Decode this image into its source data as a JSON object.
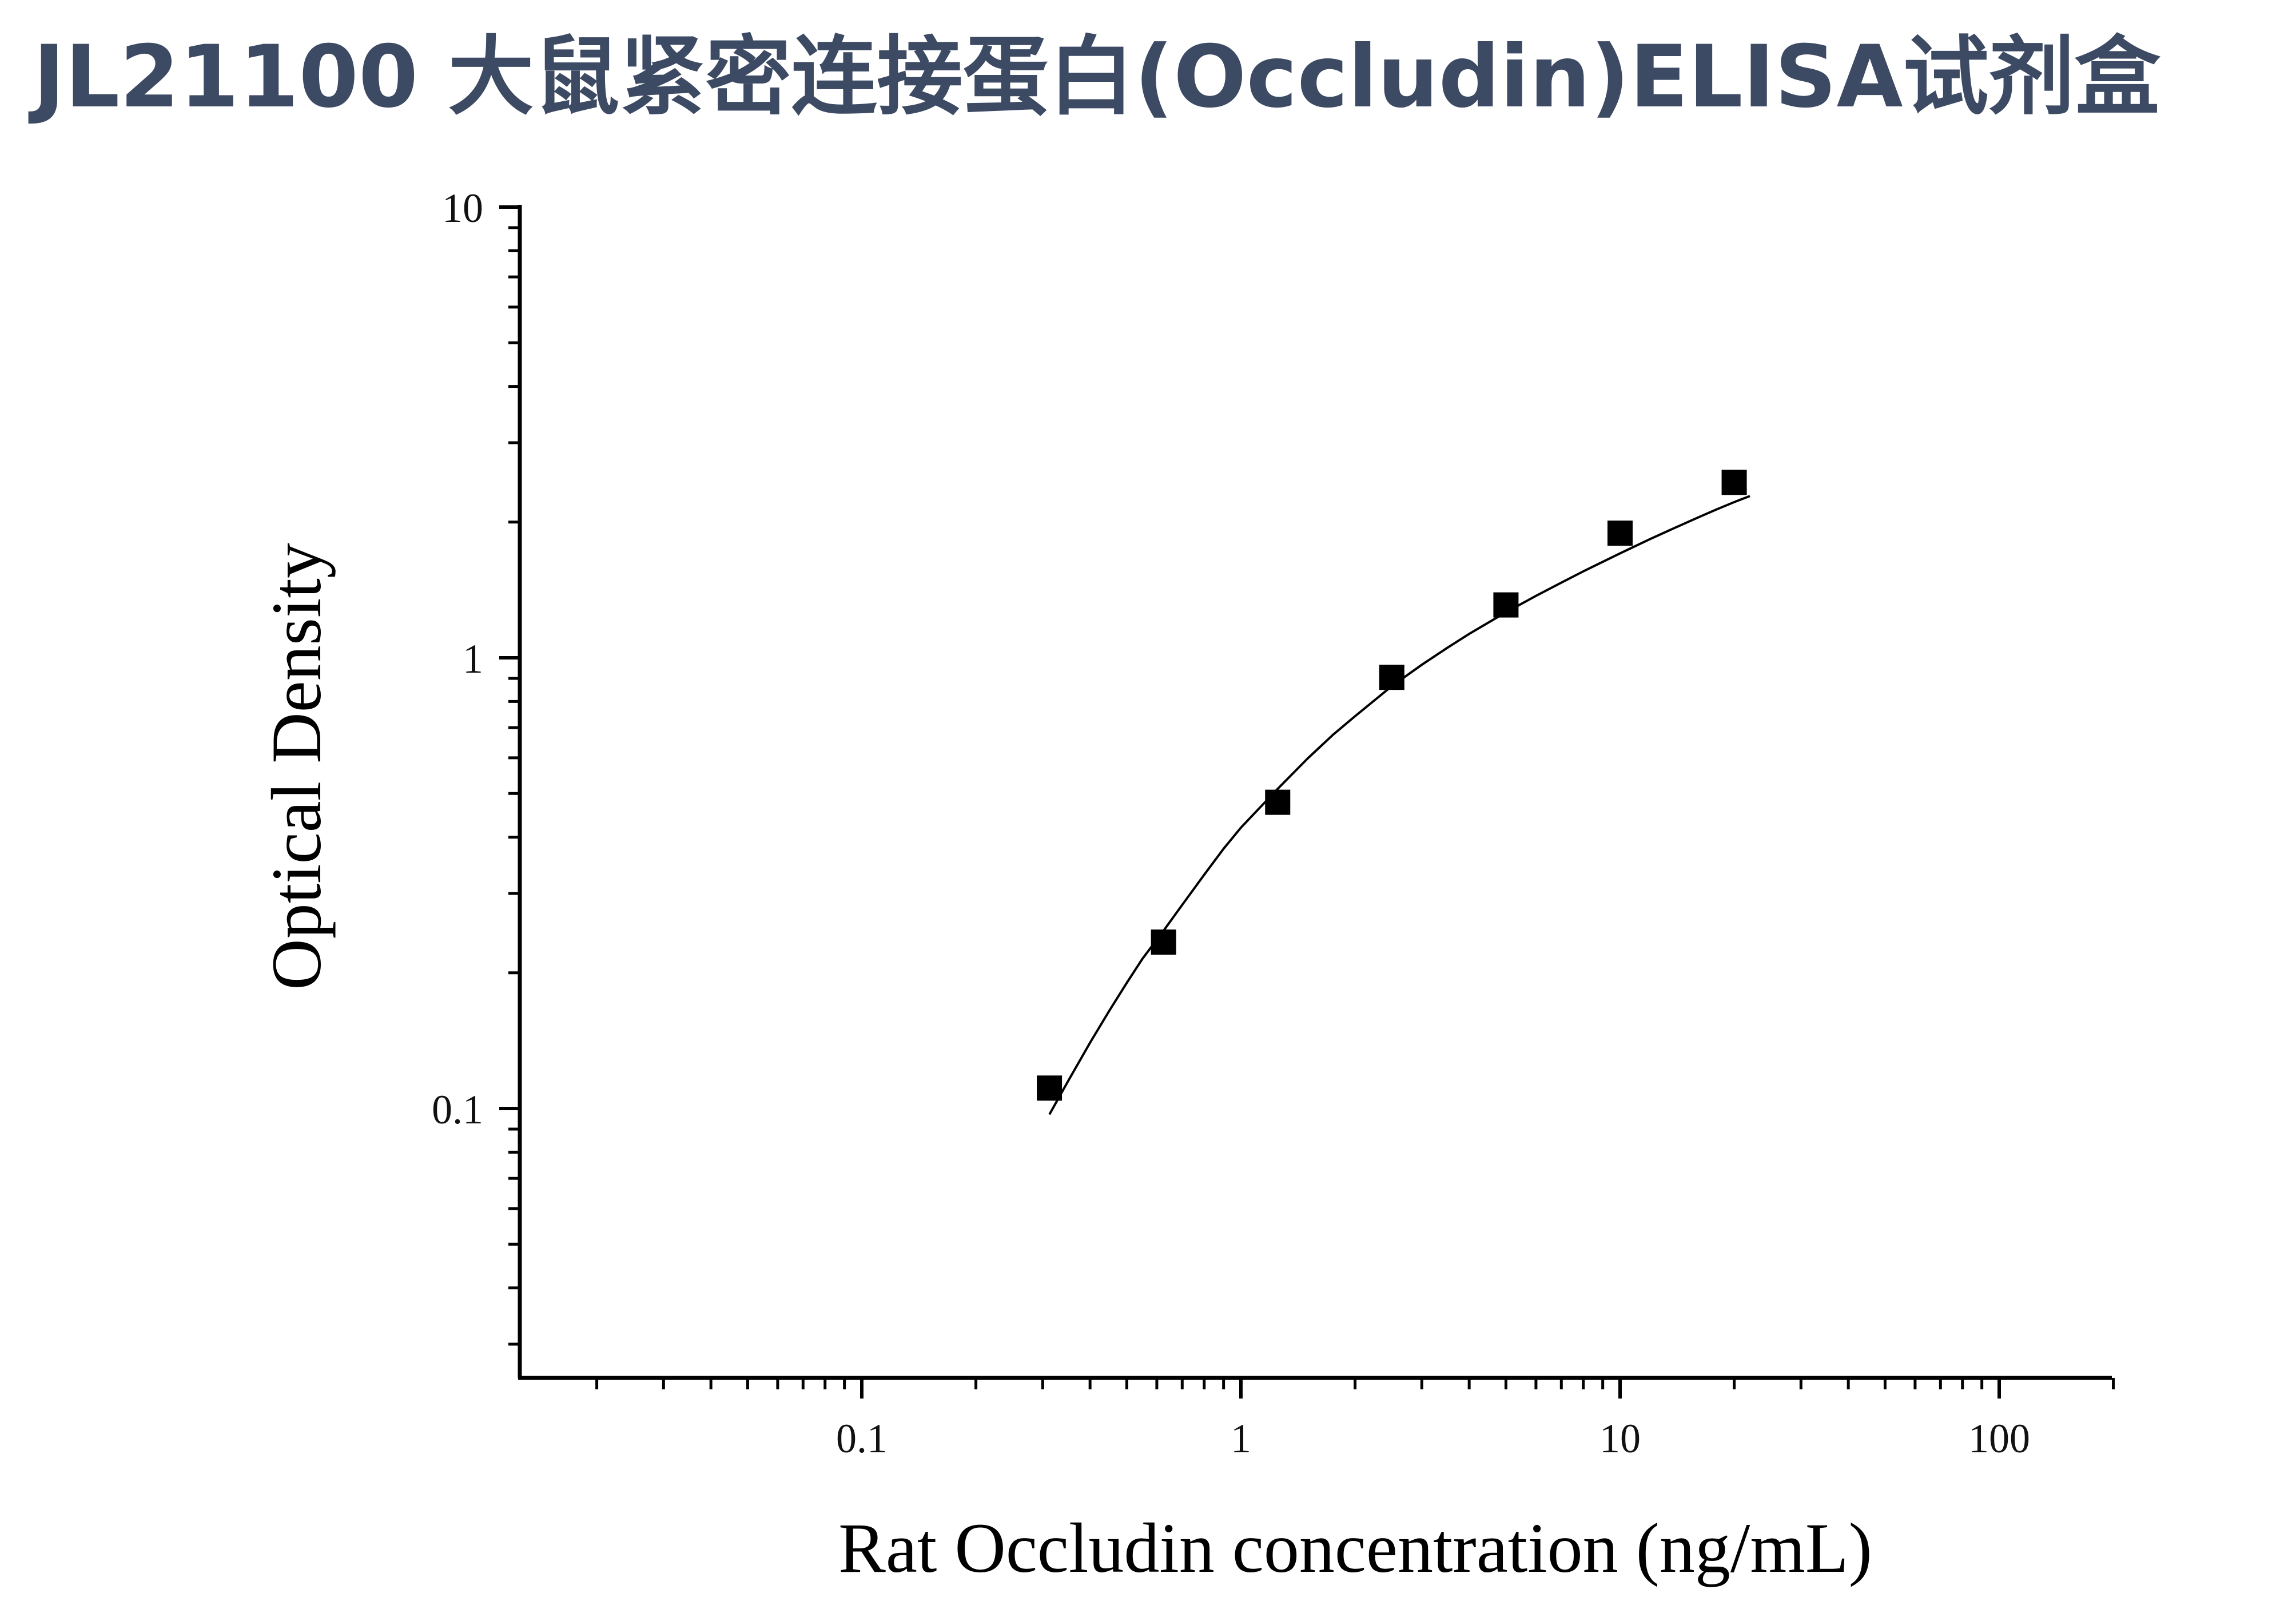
{
  "page": {
    "title": "JL21100 大鼠紧密连接蛋白(Occludin)ELISA试剂盒"
  },
  "chart_data": {
    "type": "scatter",
    "title": "",
    "xlabel": "Rat Occludin concentration (ng/mL)",
    "ylabel": "Optical Density",
    "x_scale": "log",
    "y_scale": "log",
    "xlim": [
      0.012,
      200
    ],
    "ylim": [
      0.025,
      10
    ],
    "x_ticks": [
      {
        "value": 0.1,
        "label": "0.1"
      },
      {
        "value": 1,
        "label": "1"
      },
      {
        "value": 10,
        "label": "10"
      },
      {
        "value": 100,
        "label": "100"
      }
    ],
    "y_ticks": [
      {
        "value": 0.1,
        "label": "0.1"
      },
      {
        "value": 1,
        "label": "1"
      },
      {
        "value": 10,
        "label": "10"
      }
    ],
    "grid": false,
    "legend": "none",
    "marker": "square",
    "marker_color": "#000000",
    "line_color": "#000000",
    "series": [
      {
        "x": [
          0.3125,
          0.625,
          1.25,
          2.5,
          5,
          10,
          20
        ],
        "y": [
          0.111,
          0.234,
          0.478,
          0.905,
          1.31,
          1.89,
          2.45
        ]
      }
    ],
    "fit_curve": {
      "type": "four-parameter logistic",
      "x_range": [
        0.3125,
        20
      ],
      "points": [
        [
          0.3125,
          0.097
        ],
        [
          0.35,
          0.115
        ],
        [
          0.4,
          0.14
        ],
        [
          0.45,
          0.165
        ],
        [
          0.5,
          0.19
        ],
        [
          0.55,
          0.215
        ],
        [
          0.625,
          0.248
        ],
        [
          0.7,
          0.283
        ],
        [
          0.8,
          0.33
        ],
        [
          0.9,
          0.377
        ],
        [
          1.0,
          0.42
        ],
        [
          1.25,
          0.512
        ],
        [
          1.5,
          0.598
        ],
        [
          1.75,
          0.675
        ],
        [
          2.0,
          0.742
        ],
        [
          2.5,
          0.865
        ],
        [
          3.0,
          0.965
        ],
        [
          3.5,
          1.052
        ],
        [
          4.0,
          1.13
        ],
        [
          5.0,
          1.262
        ],
        [
          6.0,
          1.372
        ],
        [
          7.0,
          1.468
        ],
        [
          8.0,
          1.555
        ],
        [
          10.0,
          1.705
        ],
        [
          12.0,
          1.834
        ],
        [
          14.0,
          1.945
        ],
        [
          16.0,
          2.045
        ],
        [
          18.0,
          2.135
        ],
        [
          20.0,
          2.215
        ],
        [
          22.0,
          2.285
        ]
      ]
    }
  }
}
